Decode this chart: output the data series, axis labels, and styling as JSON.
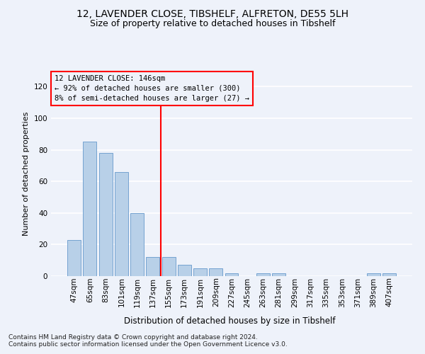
{
  "title1": "12, LAVENDER CLOSE, TIBSHELF, ALFRETON, DE55 5LH",
  "title2": "Size of property relative to detached houses in Tibshelf",
  "xlabel": "Distribution of detached houses by size in Tibshelf",
  "ylabel": "Number of detached properties",
  "categories": [
    "47sqm",
    "65sqm",
    "83sqm",
    "101sqm",
    "119sqm",
    "137sqm",
    "155sqm",
    "173sqm",
    "191sqm",
    "209sqm",
    "227sqm",
    "245sqm",
    "263sqm",
    "281sqm",
    "299sqm",
    "317sqm",
    "335sqm",
    "353sqm",
    "371sqm",
    "389sqm",
    "407sqm"
  ],
  "values": [
    23,
    85,
    78,
    66,
    40,
    12,
    12,
    7,
    5,
    5,
    2,
    0,
    2,
    2,
    0,
    0,
    0,
    0,
    0,
    2,
    2
  ],
  "bar_color": "#b8d0e8",
  "bar_edge_color": "#6699cc",
  "vline_x": 5.5,
  "vline_color": "red",
  "annotation_box_text": "12 LAVENDER CLOSE: 146sqm\n← 92% of detached houses are smaller (300)\n8% of semi-detached houses are larger (27) →",
  "annotation_box_color": "red",
  "ylim": [
    0,
    130
  ],
  "yticks": [
    0,
    20,
    40,
    60,
    80,
    100,
    120
  ],
  "footer1": "Contains HM Land Registry data © Crown copyright and database right 2024.",
  "footer2": "Contains public sector information licensed under the Open Government Licence v3.0.",
  "background_color": "#eef2fa",
  "grid_color": "#ffffff",
  "title1_fontsize": 10,
  "title2_fontsize": 9,
  "xlabel_fontsize": 8.5,
  "ylabel_fontsize": 8,
  "annotation_fontsize": 7.5,
  "footer_fontsize": 6.5,
  "tick_fontsize": 7.5
}
